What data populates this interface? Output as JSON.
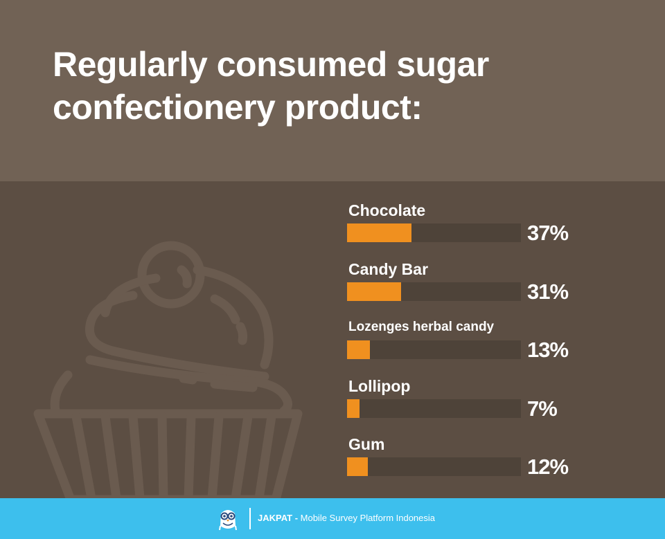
{
  "header": {
    "title": "Regularly consumed sugar confectionery product:"
  },
  "chart_data": {
    "type": "bar",
    "orientation": "horizontal",
    "categories": [
      "Chocolate",
      "Candy Bar",
      "Lozenges herbal candy",
      "Lollipop",
      "Gum"
    ],
    "values": [
      37,
      31,
      13,
      7,
      12
    ],
    "value_labels": [
      "37%",
      "31%",
      "13%",
      "7%",
      "12%"
    ],
    "unit": "%",
    "xlim": [
      0,
      100
    ],
    "grid": false,
    "bar_color": "#f0901f",
    "track_color": "#4e4339"
  },
  "footer": {
    "brand": "JAKPAT",
    "separator": " - ",
    "tagline": "Mobile Survey Platform Indonesia",
    "logo_icon": "owl-mascot-icon"
  },
  "colors": {
    "header_bg": "#716255",
    "body_bg": "#5c4e43",
    "footer_bg": "#3dbfed",
    "accent": "#f0901f"
  }
}
